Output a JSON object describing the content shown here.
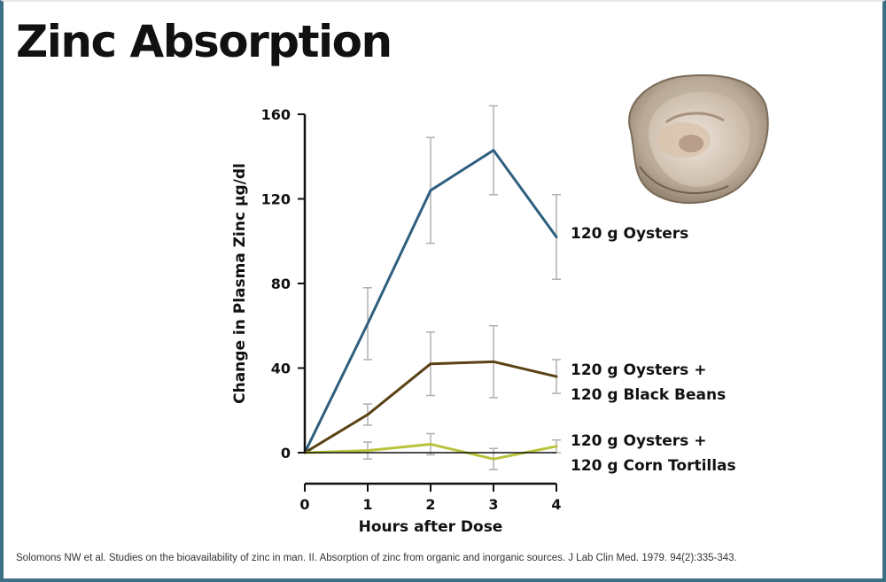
{
  "title": "Zinc Absorption",
  "citation": "Solomons NW et al. Studies on the bioavailability of zinc in man. II. Absorption of zinc from organic and inorganic sources. J Lab Clin Med. 1979. 94(2):335-343.",
  "chart_data": {
    "type": "line",
    "title": "Zinc Absorption",
    "xlabel": "Hours after Dose",
    "ylabel": "Change in Plasma Zinc µg/dl",
    "x": [
      0,
      1,
      2,
      3,
      4
    ],
    "xlim": [
      0,
      4
    ],
    "ylim": [
      0,
      160
    ],
    "yticks": [
      0,
      40,
      80,
      120,
      160
    ],
    "xticks": [
      0,
      1,
      2,
      3,
      4
    ],
    "grid": false,
    "legend": "inline-right",
    "series": [
      {
        "name": "120 g Oysters",
        "color": "#2f5f7f",
        "values": [
          0,
          61,
          124,
          143,
          102
        ],
        "error": [
          null,
          17,
          25,
          21,
          20
        ]
      },
      {
        "name": "120 g Oysters + 120 g Black Beans",
        "name_lines": [
          "120 g Oysters +",
          "120 g Black Beans"
        ],
        "color": "#5a4215",
        "values": [
          0,
          18,
          42,
          43,
          36
        ],
        "error": [
          null,
          5,
          15,
          17,
          8
        ]
      },
      {
        "name": "120 g Oysters + 120 g Corn Tortillas",
        "name_lines": [
          "120 g Oysters +",
          "120 g Corn Tortillas"
        ],
        "color": "#b7c43a",
        "values": [
          0,
          1,
          4,
          -3,
          3
        ],
        "error": [
          null,
          4,
          5,
          5,
          3
        ]
      }
    ]
  },
  "errorbar_color": "#b0b0b0",
  "axis_color": "#111111",
  "image_icon": "oyster-photo"
}
